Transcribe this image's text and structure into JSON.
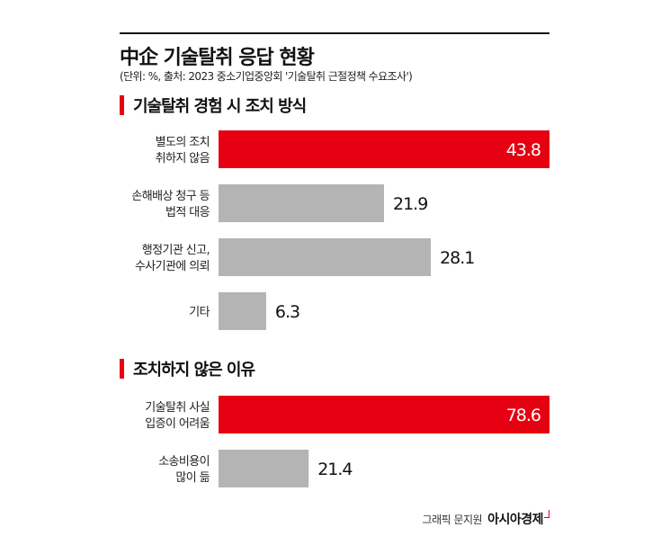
{
  "header": {
    "title": "中企 기술탈취 응답 현황",
    "subtitle": "(단위: %, 출처: 2023 중소기업중앙회 '기술탈취 근절정책 수요조사')"
  },
  "colors": {
    "highlight": "#e50012",
    "normal": "#b4b4b4",
    "highlight_text": "#ffffff",
    "normal_text": "#111111"
  },
  "chart_data": [
    {
      "type": "bar",
      "orientation": "horizontal",
      "title": "기술탈취 경험 시 조치 방식",
      "categories": [
        [
          "별도의 조치",
          "취하지 않음"
        ],
        [
          "손해배상 청구 등",
          "법적 대응"
        ],
        [
          "행정기관 신고,",
          "수사기관에 의뢰"
        ],
        [
          "기타"
        ]
      ],
      "values": [
        43.8,
        21.9,
        28.1,
        6.3
      ],
      "highlight": [
        true,
        false,
        false,
        false
      ],
      "xlim": [
        0,
        43.8
      ]
    },
    {
      "type": "bar",
      "orientation": "horizontal",
      "title": "조치하지 않은 이유",
      "categories": [
        [
          "기술탈취 사실",
          "입증이 어려움"
        ],
        [
          "소송비용이",
          "많이 듦"
        ]
      ],
      "values": [
        78.6,
        21.4
      ],
      "highlight": [
        true,
        false
      ],
      "xlim": [
        0,
        78.6
      ]
    }
  ],
  "footer": {
    "credit": "그래픽 문지원",
    "logo": "아시아경제"
  }
}
